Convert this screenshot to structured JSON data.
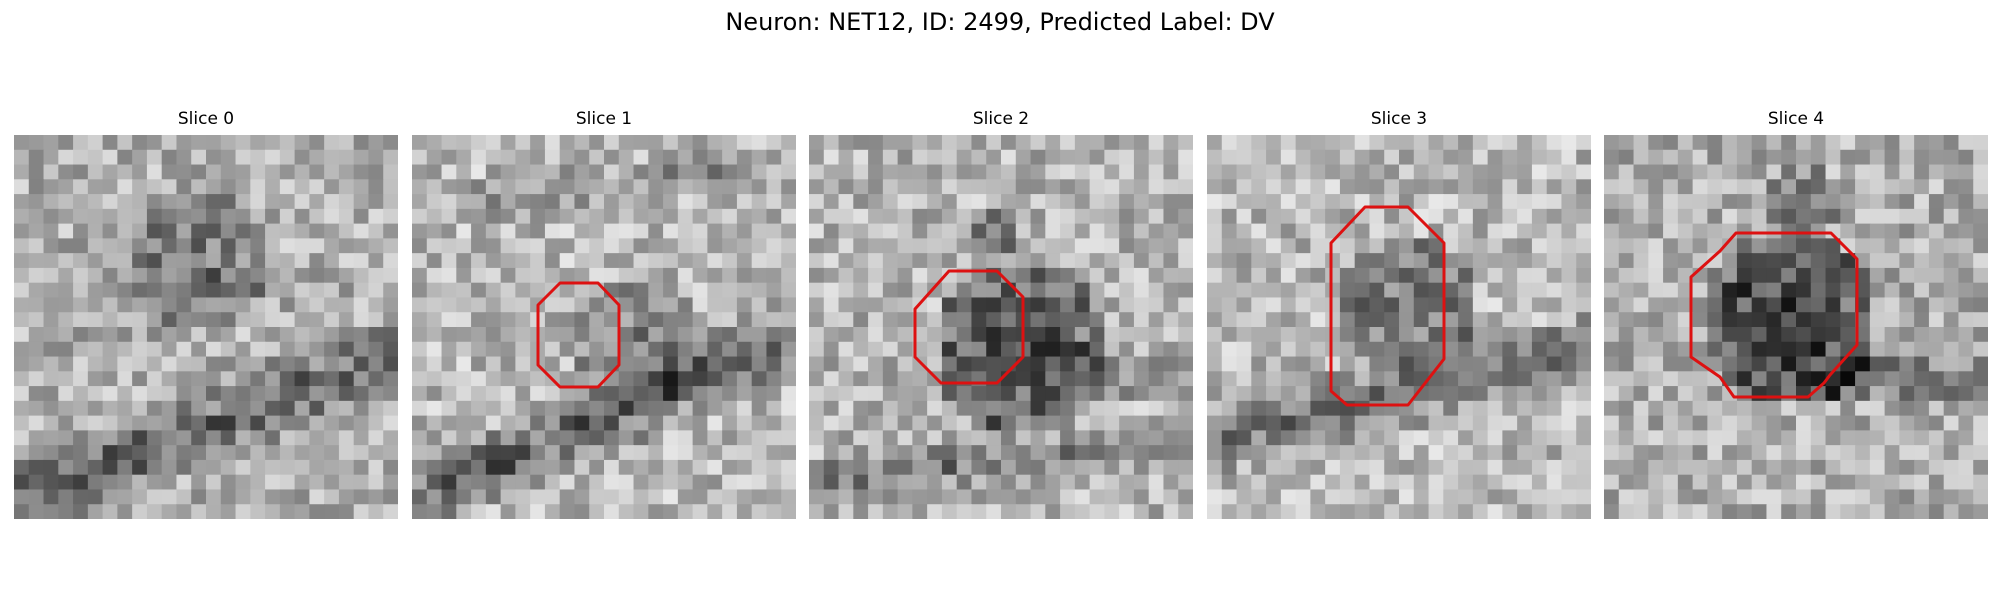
{
  "figure": {
    "title": "Neuron: NET12, ID: 2499, Predicted Label: DV",
    "outline_color": "#dd1111",
    "colormap": "grayscale"
  },
  "slices": [
    {
      "label": "Slice 0",
      "has_outline": false
    },
    {
      "label": "Slice 1",
      "has_outline": true
    },
    {
      "label": "Slice 2",
      "has_outline": true
    },
    {
      "label": "Slice 3",
      "has_outline": true
    },
    {
      "label": "Slice 4",
      "has_outline": true
    }
  ]
}
